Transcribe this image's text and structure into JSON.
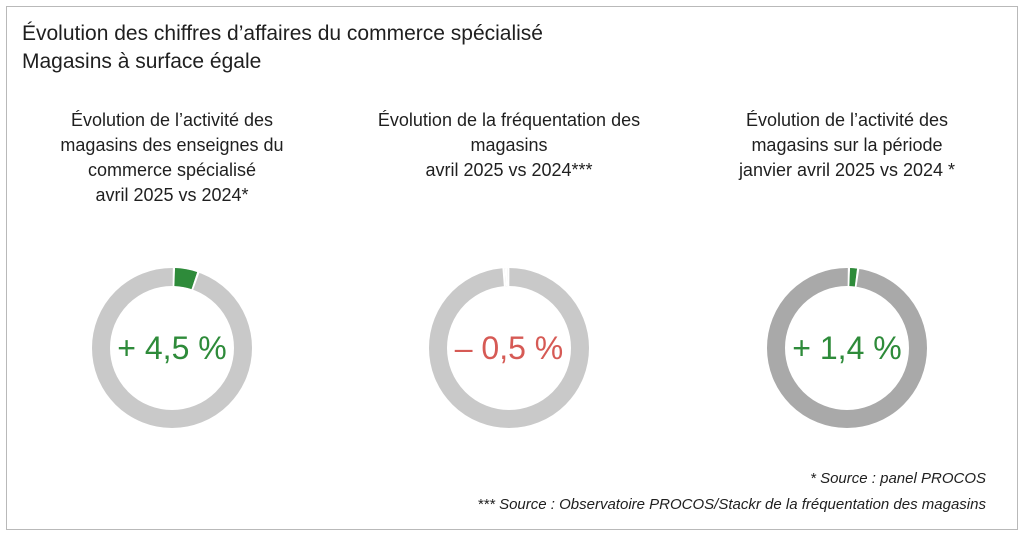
{
  "title": {
    "line1": "Évolution des chiffres d’affaires du commerce spécialisé",
    "line2": "Magasins à surface égale"
  },
  "colors": {
    "ring_light": "#c9c9c9",
    "ring_dark": "#a9a9a9",
    "positive": "#2e8b3a",
    "negative": "#d65a55"
  },
  "chart_data": [
    {
      "type": "pie",
      "title_lines": [
        "Évolution de l’activité des",
        "magasins des enseignes du",
        "commerce spécialisé",
        "avril 2025 vs 2024*"
      ],
      "label": "+ 4,5 %",
      "value": 4.5,
      "sign": "positive"
    },
    {
      "type": "pie",
      "title_lines": [
        "Évolution de la fréquentation des",
        "magasins",
        "avril 2025 vs 2024***"
      ],
      "label": "– 0,5 %",
      "value": -0.5,
      "sign": "negative"
    },
    {
      "type": "pie",
      "title_lines": [
        "Évolution de l’activité des",
        "magasins sur la période",
        "janvier avril 2025 vs 2024 *"
      ],
      "label": "+ 1,4 %",
      "value": 1.4,
      "sign": "positive"
    }
  ],
  "sources": {
    "line1": "* Source : panel PROCOS",
    "line2": "*** Source : Observatoire PROCOS/Stackr de la fréquentation des magasins"
  }
}
